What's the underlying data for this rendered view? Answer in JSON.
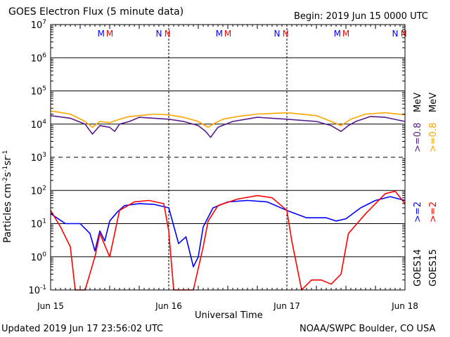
{
  "header": {
    "title": "GOES Electron Flux (5 minute data)",
    "begin": "Begin: 2019 Jun 15 0000 UTC"
  },
  "footer": {
    "updated": "Updated 2019 Jun 17 23:56:02 UTC",
    "credit": "NOAA/SWPC Boulder, CO USA"
  },
  "axes": {
    "xlabel": "Universal Time",
    "ylabel_base": "Particles cm",
    "ylabel_exp1": "-2",
    "ylabel_mid1": "s",
    "ylabel_exp2": "-1",
    "ylabel_mid2": "sr",
    "ylabel_exp3": "-1"
  },
  "markers": {
    "m": "M",
    "n": "N"
  },
  "legend": {
    "g14_low": ">=0.8",
    "g15_low": ">=0.8",
    "mev": "MeV",
    "g14_high": ">=2",
    "g15_high": ">=2",
    "goes14": "GOES14",
    "goes15": "GOES15"
  },
  "colors": {
    "g14_low": "#551a8b",
    "g15_low": "#ffa500",
    "g14_high": "#0000ff",
    "g15_high": "#ff0000",
    "grid": "#000000"
  },
  "chart_data": {
    "type": "line",
    "title": "GOES Electron Flux (5 minute data)",
    "xlabel": "Universal Time",
    "ylabel": "Particles cm-2s-1sr-1",
    "yscale": "log",
    "ylim": [
      0.1,
      10000000
    ],
    "xlim": [
      "2019-06-15",
      "2019-06-18"
    ],
    "x_tick_labels": [
      "Jun 15",
      "Jun 16",
      "Jun 17",
      "Jun 18"
    ],
    "y_tick_labels": [
      {
        "base": "10",
        "exp": "7"
      },
      {
        "base": "10",
        "exp": "6"
      },
      {
        "base": "10",
        "exp": "5"
      },
      {
        "base": "10",
        "exp": "4"
      },
      {
        "base": "10",
        "exp": "3"
      },
      {
        "base": "10",
        "exp": "2"
      },
      {
        "base": "10",
        "exp": "1"
      },
      {
        "base": "10",
        "exp": "0"
      },
      {
        "base": "10",
        "exp": "-1"
      }
    ],
    "grid": true,
    "magnetopause_markers": [
      {
        "label": "M",
        "satellite": "GOES14",
        "time": "2019-06-15 10:15"
      },
      {
        "label": "M",
        "satellite": "GOES15",
        "time": "2019-06-15 12:00"
      },
      {
        "label": "N",
        "satellite": "GOES14",
        "time": "2019-06-15 22:00"
      },
      {
        "label": "N",
        "satellite": "GOES15",
        "time": "2019-06-15 23:45"
      },
      {
        "label": "M",
        "satellite": "GOES14",
        "time": "2019-06-16 10:15"
      },
      {
        "label": "M",
        "satellite": "GOES15",
        "time": "2019-06-16 12:00"
      },
      {
        "label": "N",
        "satellite": "GOES14",
        "time": "2019-06-16 22:00"
      },
      {
        "label": "N",
        "satellite": "GOES15",
        "time": "2019-06-16 23:45"
      },
      {
        "label": "M",
        "satellite": "GOES14",
        "time": "2019-06-17 10:15"
      },
      {
        "label": "M",
        "satellite": "GOES15",
        "time": "2019-06-17 12:00"
      },
      {
        "label": "N",
        "satellite": "GOES14",
        "time": "2019-06-17 22:00"
      },
      {
        "label": "N",
        "satellite": "GOES15",
        "time": "2019-06-17 23:45"
      }
    ],
    "series": [
      {
        "name": "GOES14 >=0.8 MeV",
        "x": [
          "2019-06-15 00:00",
          "2019-06-15 04:00",
          "2019-06-15 07:00",
          "2019-06-15 08:30",
          "2019-06-15 10:00",
          "2019-06-15 12:00",
          "2019-06-15 13:00",
          "2019-06-15 14:00",
          "2019-06-15 16:00",
          "2019-06-15 18:00",
          "2019-06-15 21:00",
          "2019-06-16 00:00",
          "2019-06-16 03:00",
          "2019-06-16 06:00",
          "2019-06-16 07:30",
          "2019-06-16 08:30",
          "2019-06-16 10:00",
          "2019-06-16 13:00",
          "2019-06-16 18:00",
          "2019-06-17 00:00",
          "2019-06-17 06:00",
          "2019-06-17 09:00",
          "2019-06-17 11:00",
          "2019-06-17 12:30",
          "2019-06-17 14:00",
          "2019-06-17 17:00",
          "2019-06-17 20:00",
          "2019-06-17 24:00"
        ],
        "y": [
          18000,
          15000,
          10000,
          5000,
          9000,
          8000,
          6000,
          10000,
          12000,
          16000,
          15000,
          14000,
          12000,
          9000,
          6000,
          4000,
          8000,
          12000,
          16000,
          14000,
          12000,
          9000,
          6000,
          9000,
          12000,
          17000,
          16000,
          12000
        ]
      },
      {
        "name": "GOES15 >=0.8 MeV",
        "x": [
          "2019-06-15 00:00",
          "2019-06-15 04:00",
          "2019-06-15 07:00",
          "2019-06-15 08:30",
          "2019-06-15 10:00",
          "2019-06-15 12:00",
          "2019-06-15 14:00",
          "2019-06-15 16:00",
          "2019-06-15 18:00",
          "2019-06-15 21:00",
          "2019-06-16 00:00",
          "2019-06-16 03:00",
          "2019-06-16 06:00",
          "2019-06-16 08:00",
          "2019-06-16 09:00",
          "2019-06-16 11:00",
          "2019-06-16 14:00",
          "2019-06-16 18:00",
          "2019-06-17 00:00",
          "2019-06-17 06:00",
          "2019-06-17 09:00",
          "2019-06-17 11:00",
          "2019-06-17 13:00",
          "2019-06-17 16:00",
          "2019-06-17 20:00",
          "2019-06-17 24:00"
        ],
        "y": [
          25000,
          20000,
          12000,
          8000,
          12000,
          11000,
          14000,
          17000,
          18000,
          20000,
          19000,
          16000,
          12000,
          8000,
          10000,
          14000,
          17000,
          20000,
          22000,
          18000,
          12000,
          9000,
          14000,
          20000,
          22000,
          19000
        ]
      },
      {
        "name": "GOES14 >=2 MeV",
        "x": [
          "2019-06-15 00:00",
          "2019-06-15 03:00",
          "2019-06-15 06:00",
          "2019-06-15 08:00",
          "2019-06-15 09:00",
          "2019-06-15 10:00",
          "2019-06-15 11:00",
          "2019-06-15 12:00",
          "2019-06-15 13:30",
          "2019-06-15 15:00",
          "2019-06-15 18:00",
          "2019-06-15 21:00",
          "2019-06-16 00:00",
          "2019-06-16 02:00",
          "2019-06-16 03:30",
          "2019-06-16 05:00",
          "2019-06-16 06:00",
          "2019-06-16 07:00",
          "2019-06-16 09:00",
          "2019-06-16 12:00",
          "2019-06-16 16:00",
          "2019-06-16 20:00",
          "2019-06-17 00:00",
          "2019-06-17 04:00",
          "2019-06-17 08:00",
          "2019-06-17 10:00",
          "2019-06-17 12:00",
          "2019-06-17 15:00",
          "2019-06-17 18:00",
          "2019-06-17 21:00",
          "2019-06-17 24:00"
        ],
        "y": [
          20,
          10,
          10,
          5,
          1.5,
          6,
          3,
          12,
          22,
          35,
          40,
          38,
          30,
          2.5,
          4,
          0.5,
          1,
          8,
          30,
          45,
          50,
          45,
          25,
          15,
          15,
          12,
          14,
          30,
          50,
          65,
          50
        ]
      },
      {
        "name": "GOES15 >=2 MeV",
        "x": [
          "2019-06-15 00:00",
          "2019-06-15 02:00",
          "2019-06-15 04:00",
          "2019-06-15 05:00",
          "2019-06-15 07:00",
          "2019-06-15 09:00",
          "2019-06-15 10:00",
          "2019-06-15 12:00",
          "2019-06-15 14:00",
          "2019-06-15 17:00",
          "2019-06-15 20:00",
          "2019-06-15 23:00",
          "2019-06-16 00:00",
          "2019-06-16 01:00",
          "2019-06-16 03:00",
          "2019-06-16 05:00",
          "2019-06-16 07:00",
          "2019-06-16 08:00",
          "2019-06-16 10:00",
          "2019-06-16 14:00",
          "2019-06-16 18:00",
          "2019-06-16 21:00",
          "2019-06-17 00:00",
          "2019-06-17 01:00",
          "2019-06-17 03:00",
          "2019-06-17 05:00",
          "2019-06-17 07:00",
          "2019-06-17 09:00",
          "2019-06-17 11:00",
          "2019-06-17 12:30",
          "2019-06-17 16:00",
          "2019-06-17 20:00",
          "2019-06-17 22:00",
          "2019-06-17 24:00"
        ],
        "y": [
          25,
          8,
          2,
          0.1,
          0.1,
          1,
          5,
          1,
          25,
          45,
          50,
          40,
          6,
          0.1,
          0.1,
          0.1,
          2,
          12,
          35,
          55,
          70,
          60,
          25,
          3,
          0.1,
          0.2,
          0.2,
          0.15,
          0.3,
          5,
          20,
          80,
          95,
          40
        ]
      }
    ]
  }
}
